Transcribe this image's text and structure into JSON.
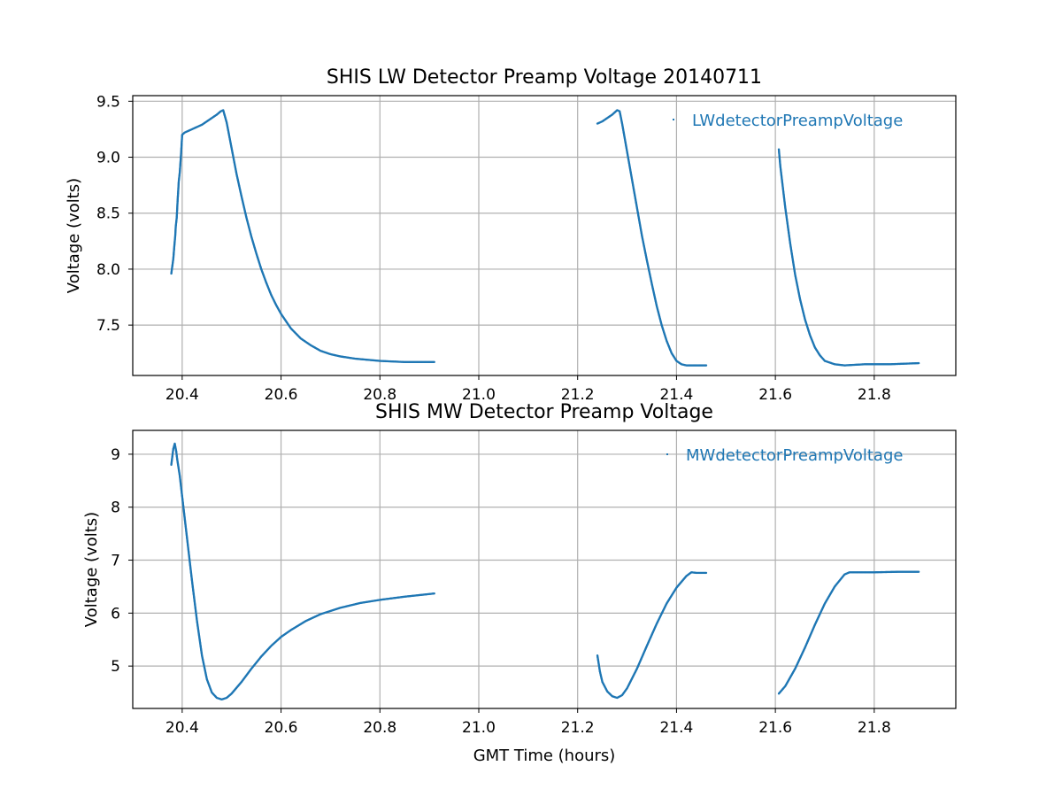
{
  "figure": {
    "background": "#ffffff",
    "series_color": "#1f77b4",
    "grid_color": "#b0b0b0"
  },
  "chart_data": [
    {
      "type": "scatter",
      "title": "SHIS LW Detector Preamp Voltage 20140711",
      "xlabel": "",
      "ylabel": "Voltage (volts)",
      "xlim": [
        20.3,
        21.965
      ],
      "ylim": [
        7.05,
        9.55
      ],
      "xticks": [
        20.4,
        20.6,
        20.8,
        21.0,
        21.2,
        21.4,
        21.6,
        21.8
      ],
      "xtick_labels": [
        "20.4",
        "20.6",
        "20.8",
        "21.0",
        "21.2",
        "21.4",
        "21.6",
        "21.8"
      ],
      "yticks": [
        7.5,
        8.0,
        8.5,
        9.0,
        9.5
      ],
      "ytick_labels": [
        "7.5",
        "8.0",
        "8.5",
        "9.0",
        "9.5"
      ],
      "grid": true,
      "legend": "top-right",
      "series": [
        {
          "name": "LWdetectorPreampVoltage",
          "marker": "point",
          "segments": [
            [
              [
                20.378,
                7.96
              ],
              [
                20.382,
                8.09
              ],
              [
                20.384,
                8.2
              ],
              [
                20.386,
                8.3
              ],
              [
                20.387,
                8.38
              ],
              [
                20.389,
                8.46
              ],
              [
                20.39,
                8.55
              ],
              [
                20.391,
                8.63
              ],
              [
                20.392,
                8.7
              ],
              [
                20.393,
                8.78
              ],
              [
                20.394,
                8.82
              ],
              [
                20.395,
                8.86
              ],
              [
                20.396,
                8.92
              ],
              [
                20.398,
                9.05
              ],
              [
                20.4,
                9.2
              ],
              [
                20.405,
                9.22
              ],
              [
                20.41,
                9.23
              ],
              [
                20.42,
                9.25
              ],
              [
                20.43,
                9.27
              ],
              [
                20.44,
                9.29
              ],
              [
                20.45,
                9.32
              ],
              [
                20.46,
                9.35
              ],
              [
                20.47,
                9.38
              ],
              [
                20.478,
                9.41
              ],
              [
                20.483,
                9.42
              ],
              [
                20.49,
                9.31
              ],
              [
                20.5,
                9.08
              ],
              [
                20.51,
                8.85
              ],
              [
                20.52,
                8.65
              ],
              [
                20.53,
                8.46
              ],
              [
                20.54,
                8.29
              ],
              [
                20.55,
                8.14
              ],
              [
                20.56,
                8.0
              ],
              [
                20.57,
                7.88
              ],
              [
                20.58,
                7.77
              ],
              [
                20.59,
                7.68
              ],
              [
                20.6,
                7.6
              ],
              [
                20.62,
                7.47
              ],
              [
                20.64,
                7.38
              ],
              [
                20.66,
                7.32
              ],
              [
                20.68,
                7.27
              ],
              [
                20.7,
                7.24
              ],
              [
                20.72,
                7.22
              ],
              [
                20.75,
                7.2
              ],
              [
                20.8,
                7.18
              ],
              [
                20.85,
                7.17
              ],
              [
                20.91,
                7.17
              ]
            ],
            [
              [
                21.24,
                9.3
              ],
              [
                21.25,
                9.32
              ],
              [
                21.26,
                9.35
              ],
              [
                21.27,
                9.38
              ],
              [
                21.28,
                9.42
              ],
              [
                21.285,
                9.41
              ],
              [
                21.29,
                9.3
              ],
              [
                21.3,
                9.05
              ],
              [
                21.31,
                8.8
              ],
              [
                21.32,
                8.55
              ],
              [
                21.33,
                8.3
              ],
              [
                21.34,
                8.08
              ],
              [
                21.35,
                7.87
              ],
              [
                21.36,
                7.67
              ],
              [
                21.37,
                7.5
              ],
              [
                21.38,
                7.36
              ],
              [
                21.39,
                7.25
              ],
              [
                21.4,
                7.18
              ],
              [
                21.41,
                7.15
              ],
              [
                21.42,
                7.14
              ],
              [
                21.44,
                7.14
              ],
              [
                21.46,
                7.14
              ]
            ],
            [
              [
                21.607,
                9.07
              ],
              [
                21.61,
                8.92
              ],
              [
                21.62,
                8.55
              ],
              [
                21.63,
                8.23
              ],
              [
                21.64,
                7.95
              ],
              [
                21.65,
                7.73
              ],
              [
                21.66,
                7.55
              ],
              [
                21.67,
                7.41
              ],
              [
                21.68,
                7.3
              ],
              [
                21.69,
                7.23
              ],
              [
                21.7,
                7.18
              ],
              [
                21.72,
                7.15
              ],
              [
                21.74,
                7.14
              ],
              [
                21.78,
                7.15
              ],
              [
                21.83,
                7.15
              ],
              [
                21.89,
                7.16
              ]
            ]
          ]
        }
      ]
    },
    {
      "type": "scatter",
      "title": "SHIS MW Detector Preamp Voltage",
      "xlabel": "GMT Time (hours)",
      "ylabel": "Voltage (volts)",
      "xlim": [
        20.3,
        21.965
      ],
      "ylim": [
        4.2,
        9.45
      ],
      "xticks": [
        20.4,
        20.6,
        20.8,
        21.0,
        21.2,
        21.4,
        21.6,
        21.8
      ],
      "xtick_labels": [
        "20.4",
        "20.6",
        "20.8",
        "21.0",
        "21.2",
        "21.4",
        "21.6",
        "21.8"
      ],
      "yticks": [
        5,
        6,
        7,
        8,
        9
      ],
      "ytick_labels": [
        "5",
        "6",
        "7",
        "8",
        "9"
      ],
      "grid": true,
      "legend": "top-right",
      "series": [
        {
          "name": "MWdetectorPreampVoltage",
          "marker": "point",
          "segments": [
            [
              [
                20.378,
                8.8
              ],
              [
                20.382,
                9.1
              ],
              [
                20.385,
                9.2
              ],
              [
                20.388,
                9.05
              ],
              [
                20.39,
                8.9
              ],
              [
                20.395,
                8.6
              ],
              [
                20.4,
                8.2
              ],
              [
                20.41,
                7.4
              ],
              [
                20.42,
                6.6
              ],
              [
                20.43,
                5.85
              ],
              [
                20.44,
                5.2
              ],
              [
                20.45,
                4.75
              ],
              [
                20.46,
                4.5
              ],
              [
                20.47,
                4.4
              ],
              [
                20.48,
                4.37
              ],
              [
                20.49,
                4.4
              ],
              [
                20.5,
                4.48
              ],
              [
                20.52,
                4.7
              ],
              [
                20.54,
                4.95
              ],
              [
                20.56,
                5.18
              ],
              [
                20.58,
                5.38
              ],
              [
                20.6,
                5.55
              ],
              [
                20.62,
                5.68
              ],
              [
                20.65,
                5.85
              ],
              [
                20.68,
                5.98
              ],
              [
                20.72,
                6.1
              ],
              [
                20.76,
                6.19
              ],
              [
                20.8,
                6.25
              ],
              [
                20.85,
                6.31
              ],
              [
                20.91,
                6.37
              ]
            ],
            [
              [
                21.24,
                5.2
              ],
              [
                21.245,
                4.9
              ],
              [
                21.25,
                4.7
              ],
              [
                21.26,
                4.52
              ],
              [
                21.27,
                4.43
              ],
              [
                21.28,
                4.4
              ],
              [
                21.29,
                4.45
              ],
              [
                21.3,
                4.58
              ],
              [
                21.32,
                4.95
              ],
              [
                21.34,
                5.38
              ],
              [
                21.36,
                5.8
              ],
              [
                21.38,
                6.18
              ],
              [
                21.4,
                6.48
              ],
              [
                21.42,
                6.7
              ],
              [
                21.43,
                6.77
              ],
              [
                21.44,
                6.76
              ],
              [
                21.46,
                6.76
              ]
            ],
            [
              [
                21.607,
                4.48
              ],
              [
                21.62,
                4.62
              ],
              [
                21.64,
                4.95
              ],
              [
                21.66,
                5.35
              ],
              [
                21.68,
                5.78
              ],
              [
                21.7,
                6.18
              ],
              [
                21.72,
                6.5
              ],
              [
                21.74,
                6.73
              ],
              [
                21.75,
                6.77
              ],
              [
                21.8,
                6.77
              ],
              [
                21.85,
                6.78
              ],
              [
                21.89,
                6.78
              ]
            ]
          ]
        }
      ]
    }
  ]
}
